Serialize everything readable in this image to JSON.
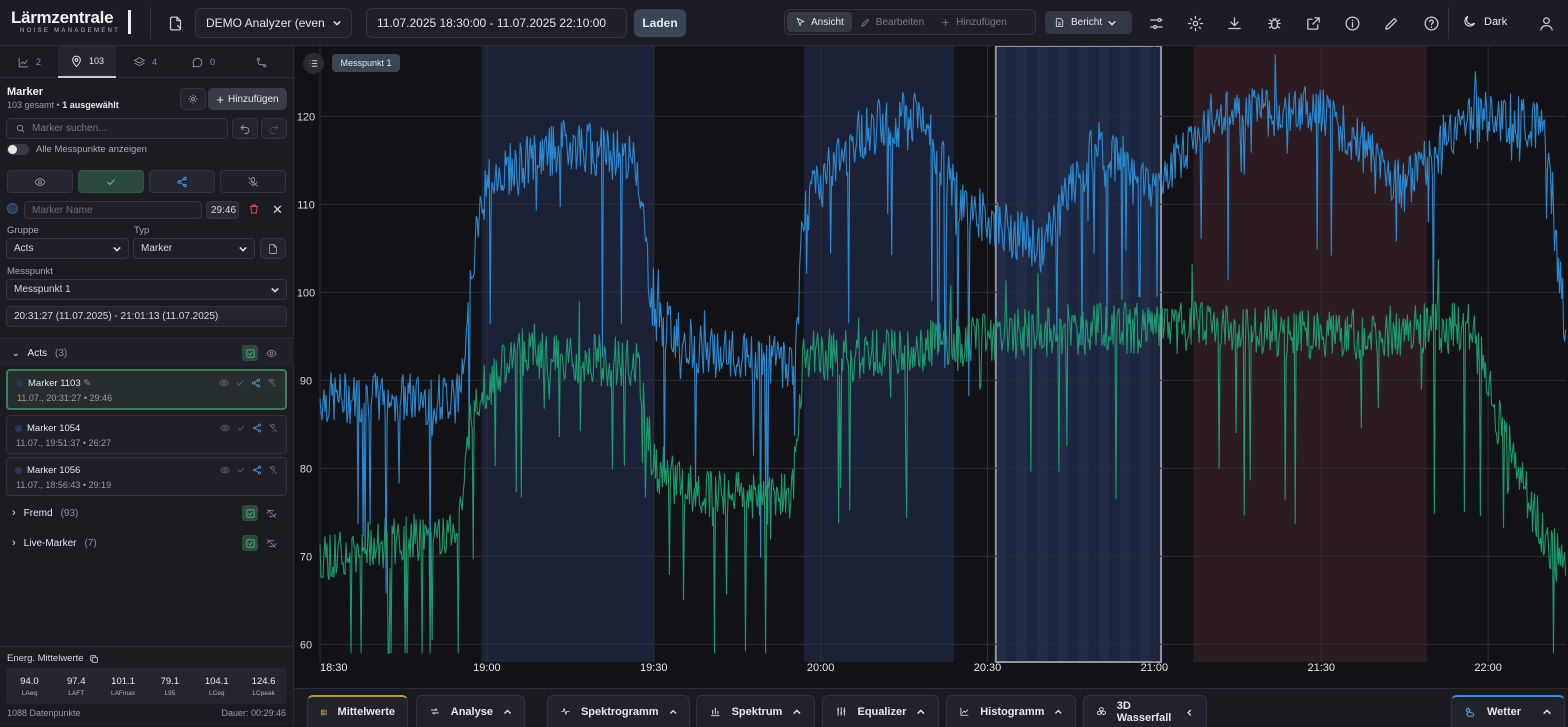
{
  "app": {
    "logo_title": "Lärmzentrale",
    "logo_subtitle": "NOISE MANAGEMENT"
  },
  "toolbar": {
    "analyzer": "DEMO Analyzer (even",
    "date_range": "11.07.2025 18:30:00 - 11.07.2025 22:10:00",
    "load_label": "Laden",
    "modes": [
      {
        "label": "Ansicht",
        "active": true
      },
      {
        "label": "Bearbeiten",
        "active": false
      },
      {
        "label": "Hinzufügen",
        "active": false
      }
    ],
    "report_label": "Bericht",
    "theme_label": "Dark"
  },
  "sidebar": {
    "tabs": [
      {
        "icon": "chart-icon",
        "count": "2"
      },
      {
        "icon": "location-pin-icon",
        "count": "103",
        "active": true
      },
      {
        "icon": "layers-icon",
        "count": "4"
      },
      {
        "icon": "comment-icon",
        "count": "0"
      },
      {
        "icon": "route-icon",
        "count": ""
      }
    ],
    "title": "Marker",
    "subtitle_total": "103 gesamt",
    "subtitle_sep": " • ",
    "subtitle_selected": "1 ausgewählt",
    "add_label": "Hinzufügen",
    "search_placeholder": "Marker suchen...",
    "show_all_label": "Alle Messpunkte anzeigen",
    "editor": {
      "name_placeholder": "Marker Name",
      "duration": "29:46",
      "group_label": "Gruppe",
      "group_value": "Acts",
      "type_label": "Typ",
      "type_value": "Marker",
      "point_label": "Messpunkt",
      "point_value": "Messpunkt 1",
      "time_range": "20:31:27 (11.07.2025) - 21:01:13 (11.07.2025)"
    },
    "groups": [
      {
        "name": "Acts",
        "count": "(3)",
        "expanded": true
      },
      {
        "name": "Fremd",
        "count": "(93)",
        "expanded": false
      },
      {
        "name": "Live-Marker",
        "count": "(7)",
        "expanded": false
      }
    ],
    "markers": [
      {
        "name": "Marker 1103",
        "date": "11.07., 20:31:27",
        "duration": "29:46",
        "selected": true
      },
      {
        "name": "Marker 1054",
        "date": "11.07., 19:51:37",
        "duration": "26:27",
        "selected": false
      },
      {
        "name": "Marker 1056",
        "date": "11.07., 18:56:43",
        "duration": "29:19",
        "selected": false
      }
    ],
    "energy_title": "Energ. Mittelwerte",
    "stats": [
      {
        "value": "94.0",
        "key": "LAeq"
      },
      {
        "value": "97.4",
        "key": "LAFT"
      },
      {
        "value": "101.1",
        "key": "LAFmax"
      },
      {
        "value": "79.1",
        "key": "L95"
      },
      {
        "value": "104.1",
        "key": "LCeq"
      },
      {
        "value": "124.6",
        "key": "LCpeak"
      }
    ],
    "datapoints": "1088 Datenpunkte",
    "duration": "Dauer: 00:29:46"
  },
  "chart_badge": "Messpunkt 1",
  "chart_data": {
    "type": "line",
    "x_ticks": [
      "18:30",
      "19:00",
      "19:30",
      "20:00",
      "20:30",
      "21:00",
      "21:30",
      "22:00"
    ],
    "y_ticks": [
      60,
      70,
      80,
      90,
      100,
      110,
      120
    ],
    "ylim": [
      58,
      128
    ],
    "xlim_minutes": [
      0,
      224
    ],
    "series": [
      {
        "color": "#2b8fd9",
        "segments": [
          [
            0,
            88
          ],
          [
            25,
            88
          ],
          [
            27,
            102
          ],
          [
            30,
            113
          ],
          [
            45,
            117
          ],
          [
            57,
            115
          ],
          [
            60,
            97
          ],
          [
            70,
            93
          ],
          [
            85,
            92
          ],
          [
            87,
            110
          ],
          [
            97,
            118
          ],
          [
            108,
            120
          ],
          [
            115,
            110
          ],
          [
            130,
            105
          ],
          [
            135,
            112
          ],
          [
            140,
            117
          ],
          [
            150,
            112
          ],
          [
            160,
            120
          ],
          [
            180,
            121
          ],
          [
            195,
            112
          ],
          [
            207,
            120
          ],
          [
            220,
            119
          ],
          [
            224,
            95
          ]
        ]
      },
      {
        "color": "#1aa172",
        "segments": [
          [
            0,
            70
          ],
          [
            25,
            73
          ],
          [
            27,
            87
          ],
          [
            35,
            93
          ],
          [
            57,
            92
          ],
          [
            60,
            80
          ],
          [
            70,
            77
          ],
          [
            85,
            77
          ],
          [
            87,
            93
          ],
          [
            100,
            93
          ],
          [
            110,
            94
          ],
          [
            120,
            95
          ],
          [
            140,
            96
          ],
          [
            160,
            96
          ],
          [
            180,
            95
          ],
          [
            200,
            96
          ],
          [
            207,
            96
          ],
          [
            212,
            85
          ],
          [
            218,
            75
          ],
          [
            224,
            68
          ]
        ]
      }
    ],
    "highlight_windows": [
      {
        "from_min": 29,
        "to_min": 60,
        "kind": "marker"
      },
      {
        "from_min": 87,
        "to_min": 114,
        "kind": "marker"
      },
      {
        "from_min": 121.5,
        "to_min": 151.2,
        "kind": "selected"
      },
      {
        "from_min": 157,
        "to_min": 199,
        "kind": "foreign"
      }
    ],
    "grid": true
  },
  "bottom_tabs": [
    {
      "label": "Mittelwerte",
      "icon": "table-icon",
      "chevron": ""
    },
    {
      "label": "Analyse",
      "icon": "repeat-icon",
      "chevron": "up"
    },
    {
      "label": "Spektrogramm",
      "icon": "pulse-icon",
      "chevron": "up"
    },
    {
      "label": "Spektrum",
      "icon": "bars-icon",
      "chevron": "up"
    },
    {
      "label": "Equalizer",
      "icon": "sliders-icon",
      "chevron": "up"
    },
    {
      "label": "Histogramm",
      "icon": "line-chart-icon",
      "chevron": "up"
    },
    {
      "label": "3D Wasserfall",
      "icon": "cubes-icon",
      "chevron": "left"
    },
    {
      "label": "Wetter",
      "icon": "weather-icon",
      "chevron": "up"
    }
  ]
}
